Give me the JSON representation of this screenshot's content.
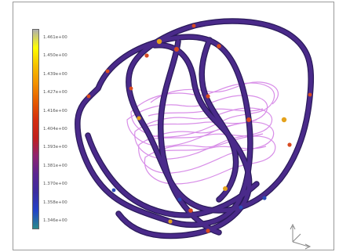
{
  "legend": {
    "colors": [
      "#b0b0b0",
      "#ffff00",
      "#f6c000",
      "#f39000",
      "#e65a00",
      "#d42e10",
      "#c0201e",
      "#8e2370",
      "#5a2590",
      "#3a2ca0",
      "#2242c8",
      "#2a8a8a"
    ],
    "labels": [
      "1.461e+00",
      "1.450e+00",
      "1.439e+00",
      "1.427e+00",
      "1.416e+00",
      "1.404e+00",
      "1.393e+00",
      "1.381e+00",
      "1.370e+00",
      "1.358e+00",
      "1.346e+00"
    ]
  },
  "colors": {
    "tube": "#4a2a8a",
    "tube_outline": "#2a1a5a",
    "hot": "#d84a20",
    "warm": "#e4a21c",
    "cool": "#2a4ab8",
    "coil": "#d88ee8",
    "axis": "#888888"
  }
}
